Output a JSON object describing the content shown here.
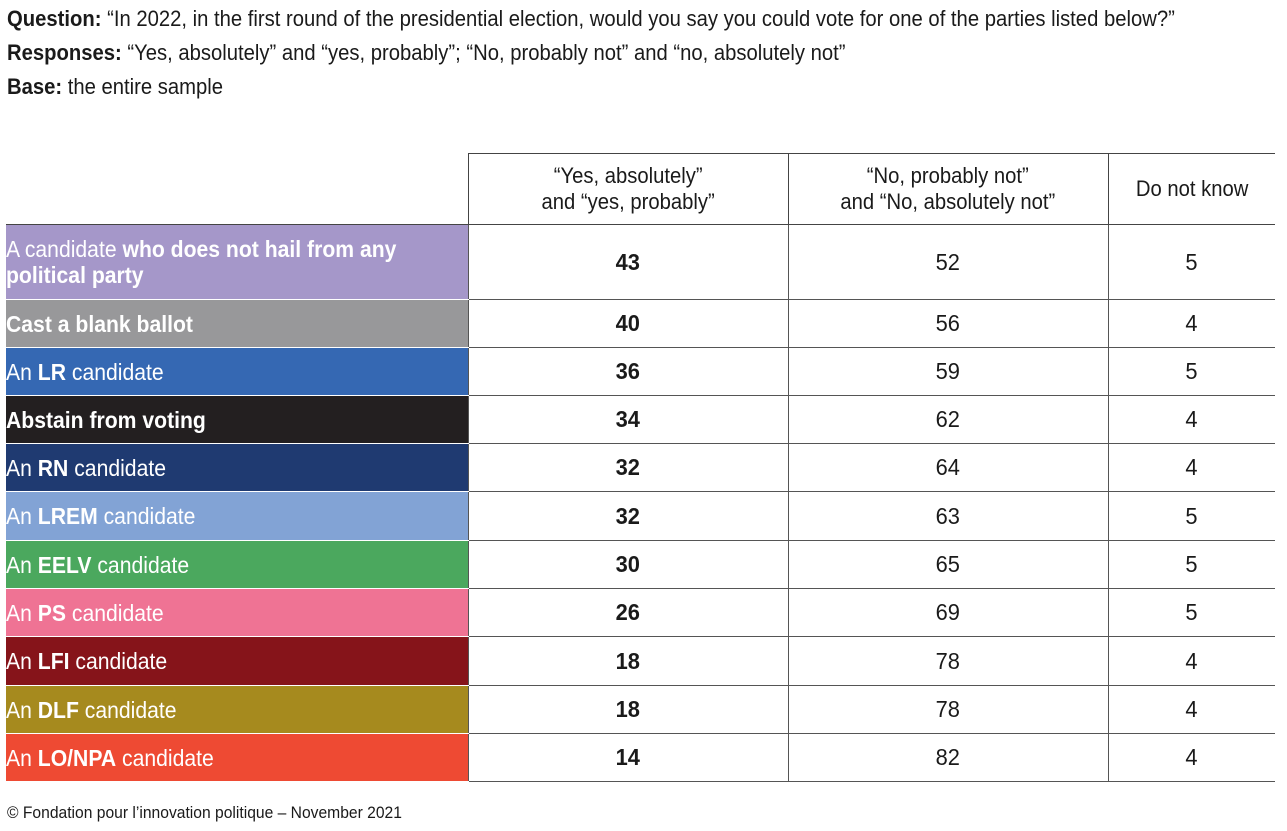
{
  "intro": {
    "question_label": "Question:",
    "question_text": "“In 2022, in the first round of the presidential election, would you say you could vote for one of the parties listed below?”",
    "responses_label": "Responses:",
    "responses_text": "“Yes, absolutely” and “yes, probably”; “No, probably not” and “no, absolutely not”",
    "base_label": "Base:",
    "base_text": "the entire sample"
  },
  "chart_data": {
    "type": "table",
    "columns": [
      "“Yes, absolutely”\nand “yes, probably”",
      "“No, probably not”\nand “No, absolutely not”",
      "Do not know"
    ],
    "rows": [
      {
        "pre": "A candidate ",
        "bold": "who does not hail from any political party",
        "post": "",
        "color": "#a597c9",
        "values": [
          43,
          52,
          5
        ]
      },
      {
        "pre": "",
        "bold": "Cast a blank ballot",
        "post": "",
        "color": "#98989a",
        "values": [
          40,
          56,
          4
        ]
      },
      {
        "pre": "An ",
        "bold": "LR",
        "post": " candidate",
        "color": "#3568b3",
        "values": [
          36,
          59,
          5
        ]
      },
      {
        "pre": "",
        "bold": "Abstain from voting",
        "post": "",
        "color": "#231f20",
        "values": [
          34,
          62,
          4
        ]
      },
      {
        "pre": "An ",
        "bold": "RN",
        "post": " candidate",
        "color": "#1f3a71",
        "values": [
          32,
          64,
          4
        ]
      },
      {
        "pre": "An ",
        "bold": "LREM",
        "post": " candidate",
        "color": "#82a3d5",
        "values": [
          32,
          63,
          5
        ]
      },
      {
        "pre": "An ",
        "bold": "EELV",
        "post": " candidate",
        "color": "#4ba85e",
        "values": [
          30,
          65,
          5
        ]
      },
      {
        "pre": "An ",
        "bold": "PS",
        "post": " candidate",
        "color": "#ef7394",
        "values": [
          26,
          69,
          5
        ]
      },
      {
        "pre": "An ",
        "bold": "LFI",
        "post": " candidate",
        "color": "#86141a",
        "values": [
          18,
          78,
          4
        ]
      },
      {
        "pre": "An ",
        "bold": "DLF",
        "post": " candidate",
        "color": "#a68a1e",
        "values": [
          18,
          78,
          4
        ]
      },
      {
        "pre": "An ",
        "bold": "LO/NPA",
        "post": " candidate",
        "color": "#ee4a33",
        "values": [
          14,
          82,
          4
        ]
      }
    ]
  },
  "footer": {
    "text": "© Fondation pour l’innovation politique – November 2021"
  }
}
